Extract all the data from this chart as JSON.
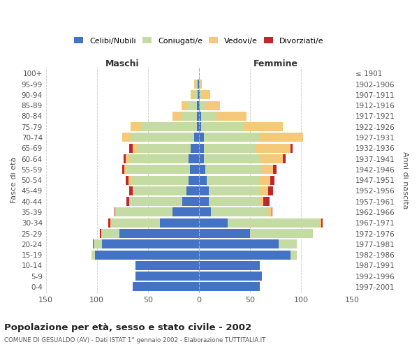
{
  "age_groups": [
    "0-4",
    "5-9",
    "10-14",
    "15-19",
    "20-24",
    "25-29",
    "30-34",
    "35-39",
    "40-44",
    "45-49",
    "50-54",
    "55-59",
    "60-64",
    "65-69",
    "70-74",
    "75-79",
    "80-84",
    "85-89",
    "90-94",
    "95-99",
    "100+"
  ],
  "birth_years": [
    "1997-2001",
    "1992-1996",
    "1987-1991",
    "1982-1986",
    "1977-1981",
    "1972-1976",
    "1967-1971",
    "1962-1966",
    "1957-1961",
    "1952-1956",
    "1947-1951",
    "1942-1946",
    "1937-1941",
    "1932-1936",
    "1927-1931",
    "1922-1926",
    "1917-1921",
    "1912-1916",
    "1907-1911",
    "1902-1906",
    "≤ 1901"
  ],
  "maschi_celibi": [
    65,
    62,
    62,
    102,
    95,
    78,
    38,
    26,
    16,
    12,
    10,
    9,
    10,
    8,
    5,
    2,
    2,
    2,
    1,
    1,
    0
  ],
  "maschi_coniugati": [
    0,
    0,
    0,
    3,
    8,
    18,
    48,
    55,
    52,
    52,
    56,
    62,
    58,
    52,
    62,
    55,
    16,
    9,
    4,
    2,
    0
  ],
  "maschi_vedovi": [
    0,
    0,
    0,
    0,
    0,
    0,
    1,
    1,
    0,
    1,
    3,
    2,
    4,
    5,
    8,
    10,
    8,
    6,
    3,
    2,
    0
  ],
  "maschi_divorziati": [
    0,
    0,
    0,
    0,
    1,
    1,
    2,
    1,
    3,
    3,
    3,
    2,
    2,
    3,
    0,
    0,
    0,
    0,
    0,
    0,
    0
  ],
  "femmine_nubili": [
    60,
    62,
    60,
    90,
    78,
    50,
    28,
    12,
    10,
    10,
    8,
    6,
    5,
    5,
    5,
    2,
    2,
    1,
    1,
    0,
    0
  ],
  "femmine_coniugate": [
    0,
    0,
    0,
    6,
    18,
    62,
    90,
    55,
    50,
    50,
    52,
    55,
    55,
    50,
    55,
    42,
    15,
    6,
    2,
    1,
    0
  ],
  "femmine_vedove": [
    0,
    0,
    0,
    0,
    0,
    0,
    2,
    4,
    3,
    8,
    10,
    12,
    22,
    35,
    42,
    38,
    30,
    14,
    8,
    2,
    0
  ],
  "femmine_divorziate": [
    0,
    0,
    0,
    0,
    0,
    0,
    1,
    1,
    6,
    5,
    4,
    3,
    3,
    2,
    0,
    0,
    0,
    0,
    0,
    0,
    0
  ],
  "color_celibi": "#4472c4",
  "color_coniugati": "#c5dba4",
  "color_vedovi": "#f5c97a",
  "color_divorziati": "#c0272d",
  "legend_labels": [
    "Celibi/Nubili",
    "Coniugati/e",
    "Vedovi/e",
    "Divorziati/e"
  ],
  "legend_colors": [
    "#4472c4",
    "#c5dba4",
    "#f5c97a",
    "#c0272d"
  ],
  "title": "Popolazione per età, sesso e stato civile - 2002",
  "subtitle": "COMUNE DI GESUALDO (AV) - Dati ISTAT 1° gennaio 2002 - Elaborazione TUTTITALIA.IT",
  "ylabel_left": "Fasce di età",
  "ylabel_right": "Anni di nascita",
  "label_maschi": "Maschi",
  "label_femmine": "Femmine",
  "xlim": 150,
  "bg_color": "#ffffff",
  "grid_color": "#cccccc",
  "bar_height": 0.85
}
